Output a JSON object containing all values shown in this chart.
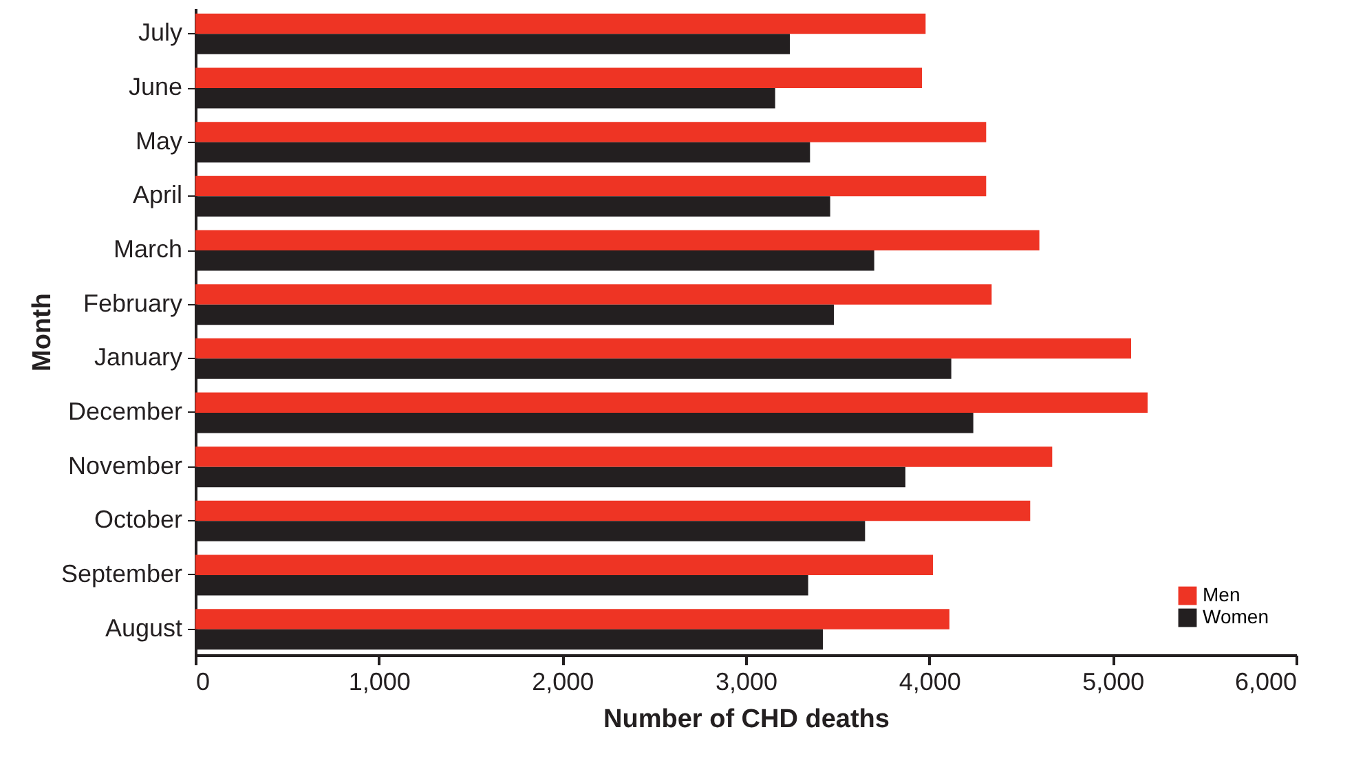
{
  "chart_data": {
    "type": "bar",
    "orientation": "horizontal",
    "xlabel": "Number of CHD deaths",
    "ylabel": "Month",
    "categories": [
      "July",
      "June",
      "May",
      "April",
      "March",
      "February",
      "January",
      "December",
      "November",
      "October",
      "September",
      "August"
    ],
    "series": [
      {
        "name": "Men",
        "color": "#ee3424",
        "values": [
          3980,
          3960,
          4310,
          4310,
          4600,
          4340,
          5100,
          5190,
          4670,
          4550,
          4020,
          4110
        ]
      },
      {
        "name": "Women",
        "color": "#231f20",
        "values": [
          3240,
          3160,
          3350,
          3460,
          3700,
          3480,
          4120,
          4240,
          3870,
          3650,
          3340,
          3420
        ]
      }
    ],
    "xlim": [
      0,
      6000
    ],
    "xticks": [
      0,
      {
        "value": 1000,
        "label": "1,000"
      },
      {
        "value": 2000,
        "label": "2,000"
      },
      {
        "value": 3000,
        "label": "3,000"
      },
      {
        "value": 4000,
        "label": "4,000"
      },
      {
        "value": 5000,
        "label": "5,000"
      },
      {
        "value": 6000,
        "label": "6,000"
      }
    ],
    "grid": false,
    "legend": "bottom right"
  }
}
